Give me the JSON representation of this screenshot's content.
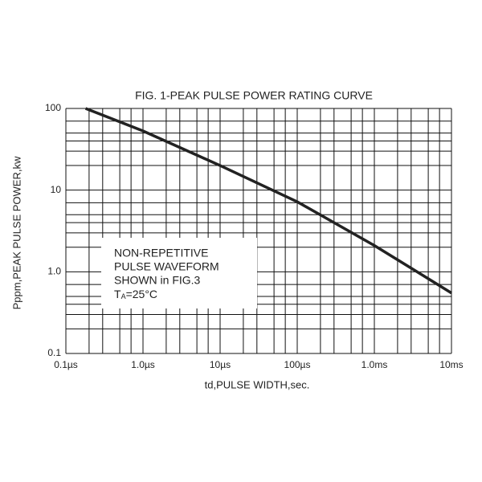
{
  "chart_data": {
    "type": "line",
    "title": "FIG. 1-PEAK PULSE POWER RATING CURVE",
    "x_label": "td,PULSE WIDTH,sec.",
    "y_label": "Pppm,PEAK PULSE POWER,kw",
    "x_log": true,
    "y_log": true,
    "grid": true,
    "xlim": [
      0.1,
      10000
    ],
    "ylim": [
      0.1,
      100
    ],
    "xticks": [
      {
        "value": 0.1,
        "label": "0.1µs"
      },
      {
        "value": 1,
        "label": "1.0µs"
      },
      {
        "value": 10,
        "label": "10µs"
      },
      {
        "value": 100,
        "label": "100µs"
      },
      {
        "value": 1000,
        "label": "1.0ms"
      },
      {
        "value": 10000,
        "label": "10ms"
      }
    ],
    "yticks": [
      {
        "value": 0.1,
        "label": "0.1"
      },
      {
        "value": 1,
        "label": "1.0"
      },
      10,
      100
    ],
    "xminor": [
      0.2,
      0.3,
      0.5,
      0.7,
      2,
      3,
      5,
      7,
      20,
      30,
      50,
      70,
      200,
      300,
      500,
      700,
      2000,
      3000,
      5000,
      7000
    ],
    "yminor": [
      0.2,
      0.3,
      0.4,
      0.5,
      0.7,
      2,
      3,
      4,
      5,
      7,
      20,
      30,
      40,
      50,
      70
    ],
    "series": [
      {
        "color": "#222222",
        "x": [
          0.18,
          1,
          10,
          100,
          1000,
          10000
        ],
        "values": [
          100,
          53,
          20,
          7.2,
          2.1,
          0.55
        ]
      }
    ],
    "annotation": {
      "lines": [
        "NON-REPETITIVE",
        "PULSE WAVEFORM",
        "SHOWN in FIG.3"
      ],
      "last": {
        "main": "T",
        "sub": "A",
        "rest": "=25°C"
      }
    }
  }
}
